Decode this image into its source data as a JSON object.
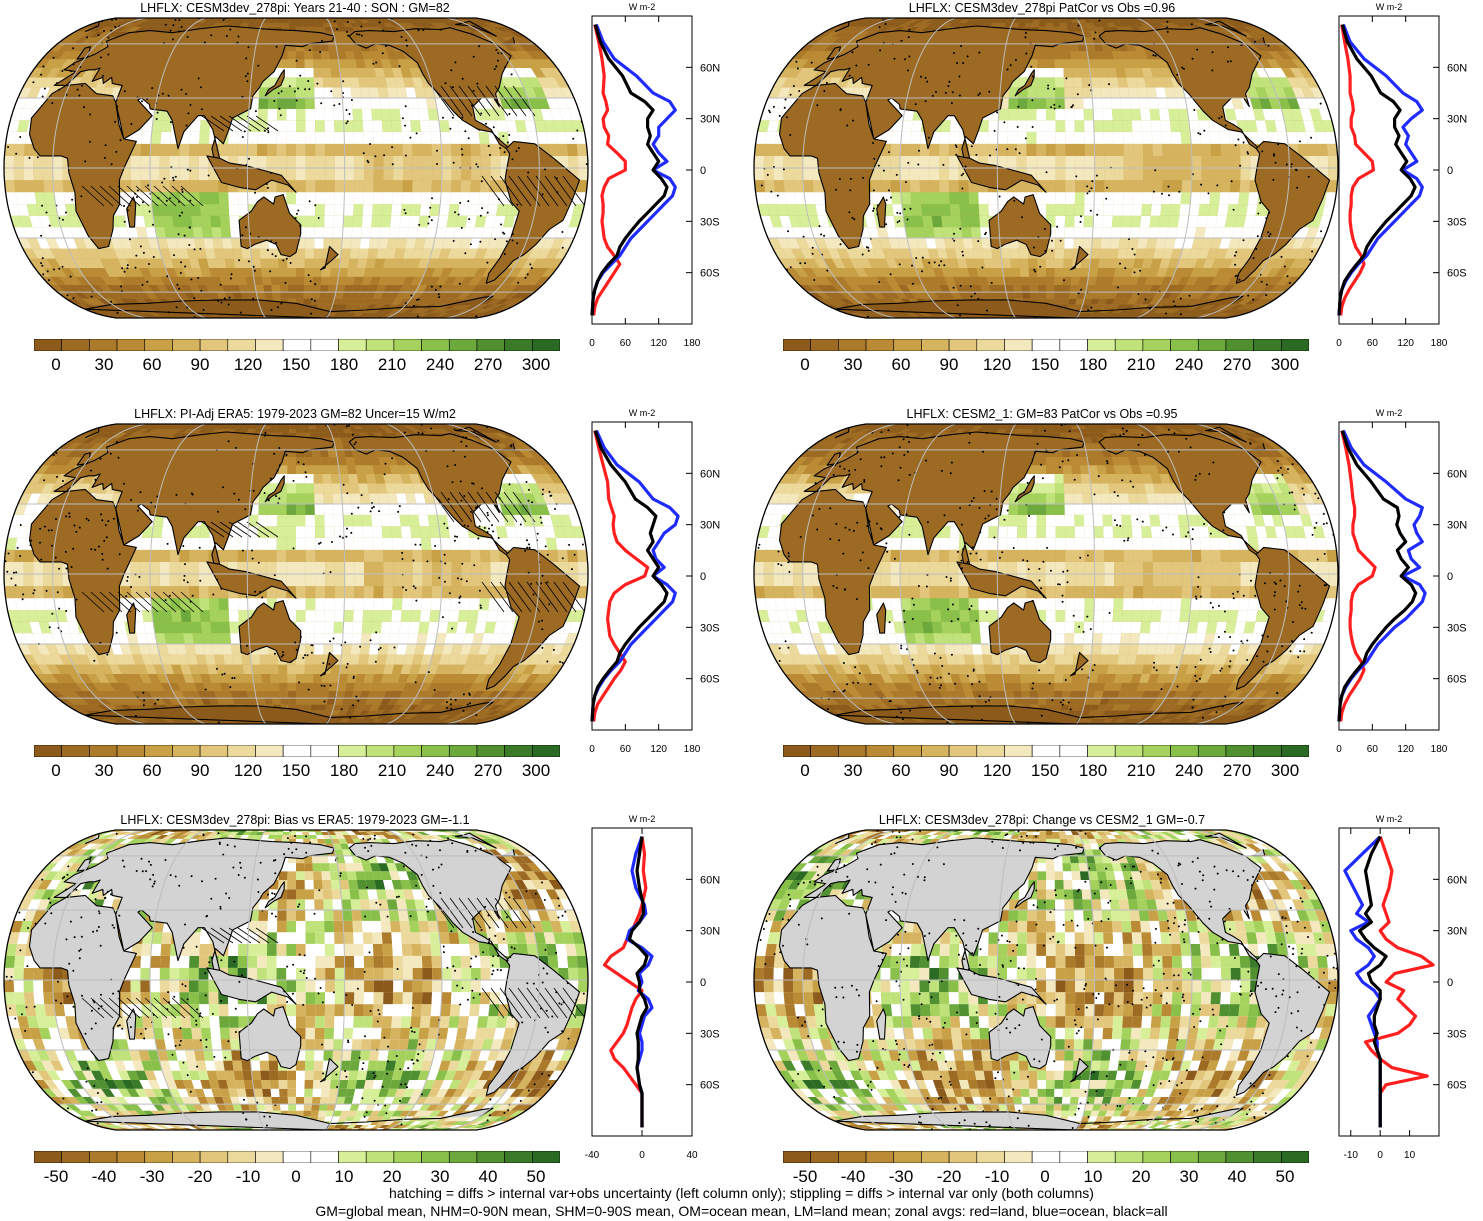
{
  "colors": {
    "land_gray": "#d3d3d3",
    "grid_line": "#bdbdbd",
    "zonal_land": "#ff1f1f",
    "zonal_ocean": "#1f2bff",
    "zonal_all": "#000000",
    "brown_to_green": [
      "#8c5a1b",
      "#9c6a22",
      "#ab7a2a",
      "#ba8a34",
      "#c8a046",
      "#d6b35f",
      "#e2c67c",
      "#ecd99c",
      "#f4e8bf",
      "#ffffff",
      "#ffffff",
      "#d8ef9a",
      "#bfe27a",
      "#a4d25d",
      "#88c04a",
      "#6ca83b",
      "#509030",
      "#3a7a28",
      "#2a6a22"
    ]
  },
  "footnote": {
    "line1": "hatching = diffs > internal var+obs uncertainty (left column only); stippling = diffs > internal var only (both columns)",
    "line2": "GM=global mean, NHM=0-90N mean, SHM=0-90S mean, OM=ocean mean, LM=land mean; zonal avgs: red=land, blue=ocean, black=all"
  },
  "chart_data": [
    {
      "type": "heatmap",
      "title": "LHFLX: CESM3dev_278pi: Years 21-40 : SON : GM=82",
      "colorbar_ticks": [
        "0",
        "30",
        "60",
        "90",
        "120",
        "150",
        "180",
        "210",
        "240",
        "270",
        "300"
      ],
      "zonal": {
        "xlabel": "W m-2",
        "xticks": [
          "0",
          "60",
          "120",
          "180"
        ],
        "xlim": [
          0,
          180
        ],
        "yticks": [
          "60N",
          "30N",
          "0",
          "30S",
          "60S"
        ],
        "lat": [
          85,
          75,
          65,
          55,
          45,
          40,
          35,
          30,
          25,
          20,
          15,
          10,
          5,
          0,
          -5,
          -10,
          -15,
          -20,
          -25,
          -30,
          -35,
          -40,
          -45,
          -50,
          -55,
          -60,
          -65,
          -70,
          -75,
          -80,
          -85
        ],
        "land": [
          5,
          12,
          18,
          22,
          20,
          25,
          28,
          20,
          22,
          30,
          28,
          45,
          60,
          60,
          30,
          22,
          18,
          20,
          20,
          18,
          20,
          22,
          28,
          40,
          50,
          40,
          30,
          20,
          10,
          5,
          3
        ],
        "ocean": [
          8,
          20,
          40,
          80,
          110,
          140,
          150,
          135,
          120,
          120,
          110,
          120,
          135,
          110,
          140,
          150,
          145,
          130,
          115,
          100,
          85,
          70,
          60,
          50,
          35,
          20,
          10,
          5,
          2,
          1,
          0
        ],
        "all": [
          6,
          15,
          30,
          55,
          70,
          95,
          110,
          100,
          100,
          105,
          100,
          110,
          120,
          110,
          125,
          135,
          130,
          115,
          100,
          85,
          72,
          60,
          50,
          45,
          30,
          18,
          10,
          5,
          2,
          1,
          0
        ]
      }
    },
    {
      "type": "heatmap",
      "title": "LHFLX: CESM3dev_278pi PatCor vs Obs =0.96",
      "colorbar_ticks": [
        "0",
        "30",
        "60",
        "90",
        "120",
        "150",
        "180",
        "210",
        "240",
        "270",
        "300"
      ],
      "zonal": {
        "xlabel": "W m-2",
        "xticks": [
          "0",
          "60",
          "120",
          "180"
        ],
        "xlim": [
          0,
          180
        ],
        "yticks": [
          "60N",
          "30N",
          "0",
          "30S",
          "60S"
        ],
        "lat": [
          85,
          75,
          65,
          55,
          45,
          40,
          35,
          30,
          25,
          20,
          15,
          10,
          5,
          0,
          -5,
          -10,
          -15,
          -20,
          -25,
          -30,
          -35,
          -40,
          -45,
          -50,
          -55,
          -60,
          -65,
          -70,
          -75,
          -80,
          -85
        ],
        "land": [
          5,
          10,
          16,
          20,
          20,
          24,
          26,
          22,
          22,
          28,
          30,
          45,
          60,
          62,
          35,
          25,
          22,
          22,
          20,
          20,
          22,
          25,
          30,
          40,
          45,
          38,
          28,
          18,
          10,
          5,
          3
        ],
        "ocean": [
          8,
          20,
          45,
          85,
          115,
          140,
          150,
          130,
          115,
          125,
          120,
          130,
          140,
          115,
          140,
          150,
          145,
          130,
          115,
          100,
          85,
          70,
          60,
          50,
          35,
          22,
          12,
          5,
          2,
          1,
          0
        ],
        "all": [
          6,
          15,
          32,
          58,
          75,
          98,
          110,
          100,
          100,
          108,
          102,
          112,
          122,
          112,
          128,
          137,
          130,
          115,
          100,
          85,
          72,
          60,
          50,
          45,
          32,
          20,
          10,
          5,
          2,
          1,
          0
        ]
      }
    },
    {
      "type": "heatmap",
      "title": "LHFLX: PI-Adj ERA5: 1979-2023 GM=82 Uncer=15 W/m2",
      "colorbar_ticks": [
        "0",
        "30",
        "60",
        "90",
        "120",
        "150",
        "180",
        "210",
        "240",
        "270",
        "300"
      ],
      "zonal": {
        "xlabel": "W m-2",
        "xticks": [
          "0",
          "60",
          "120",
          "180"
        ],
        "xlim": [
          0,
          180
        ],
        "yticks": [
          "60N",
          "30N",
          "0",
          "30S",
          "60S"
        ],
        "lat": [
          85,
          75,
          65,
          55,
          45,
          40,
          35,
          30,
          25,
          20,
          15,
          10,
          5,
          0,
          -5,
          -10,
          -15,
          -20,
          -25,
          -30,
          -35,
          -40,
          -45,
          -50,
          -55,
          -60,
          -65,
          -70,
          -75,
          -80,
          -85
        ],
        "land": [
          5,
          12,
          20,
          28,
          30,
          35,
          40,
          38,
          40,
          45,
          60,
          80,
          100,
          95,
          60,
          40,
          32,
          30,
          28,
          30,
          32,
          40,
          50,
          60,
          52,
          40,
          30,
          20,
          10,
          5,
          3
        ],
        "ocean": [
          8,
          22,
          45,
          85,
          110,
          140,
          155,
          150,
          130,
          120,
          110,
          115,
          130,
          110,
          135,
          150,
          145,
          130,
          115,
          100,
          85,
          70,
          60,
          50,
          35,
          22,
          12,
          5,
          2,
          1,
          0
        ],
        "all": [
          6,
          16,
          34,
          60,
          78,
          100,
          115,
          110,
          105,
          110,
          100,
          110,
          120,
          110,
          125,
          135,
          130,
          115,
          100,
          85,
          72,
          60,
          50,
          45,
          32,
          20,
          10,
          5,
          2,
          1,
          0
        ]
      }
    },
    {
      "type": "heatmap",
      "title": "LHFLX: CESM2_1: GM=83 PatCor vs Obs =0.95",
      "colorbar_ticks": [
        "0",
        "30",
        "60",
        "90",
        "120",
        "150",
        "180",
        "210",
        "240",
        "270",
        "300"
      ],
      "zonal": {
        "xlabel": "W m-2",
        "xticks": [
          "0",
          "60",
          "120",
          "180"
        ],
        "xlim": [
          0,
          180
        ],
        "yticks": [
          "60N",
          "30N",
          "0",
          "30S",
          "60S"
        ],
        "lat": [
          85,
          75,
          65,
          55,
          45,
          40,
          35,
          30,
          25,
          20,
          15,
          10,
          5,
          0,
          -5,
          -10,
          -15,
          -20,
          -25,
          -30,
          -35,
          -40,
          -45,
          -50,
          -55,
          -60,
          -65,
          -70,
          -75,
          -80,
          -85
        ],
        "land": [
          5,
          12,
          18,
          22,
          25,
          28,
          28,
          25,
          25,
          30,
          35,
          50,
          65,
          60,
          35,
          25,
          22,
          22,
          20,
          20,
          22,
          25,
          30,
          40,
          45,
          38,
          28,
          18,
          10,
          5,
          3
        ],
        "ocean": [
          8,
          22,
          45,
          85,
          120,
          150,
          145,
          135,
          140,
          150,
          125,
          130,
          145,
          115,
          145,
          155,
          150,
          135,
          120,
          100,
          85,
          70,
          60,
          50,
          35,
          22,
          12,
          5,
          2,
          1,
          0
        ],
        "all": [
          6,
          16,
          32,
          58,
          80,
          105,
          108,
          104,
          110,
          120,
          105,
          112,
          125,
          112,
          130,
          138,
          132,
          118,
          100,
          85,
          72,
          60,
          50,
          45,
          32,
          20,
          10,
          5,
          2,
          1,
          0
        ]
      }
    },
    {
      "type": "heatmap",
      "title": "LHFLX: CESM3dev_278pi: Bias vs ERA5: 1979-2023  GM=-1.1",
      "colorbar_ticks": [
        "-50",
        "-40",
        "-30",
        "-20",
        "-10",
        "0",
        "10",
        "20",
        "30",
        "40",
        "50"
      ],
      "zonal": {
        "xlabel": "W m-2",
        "xticks": [
          "-40",
          "0",
          "40"
        ],
        "xlim": [
          -40,
          40
        ],
        "yticks": [
          "60N",
          "30N",
          "0",
          "30S",
          "60S"
        ],
        "lat": [
          85,
          75,
          65,
          55,
          45,
          40,
          35,
          30,
          25,
          20,
          15,
          10,
          5,
          0,
          -5,
          -10,
          -15,
          -20,
          -25,
          -30,
          -35,
          -40,
          -45,
          -50,
          -55,
          -60,
          -65,
          -70,
          -75,
          -80,
          -85
        ],
        "land": [
          0,
          2,
          1,
          3,
          0,
          -2,
          -5,
          -8,
          -12,
          -15,
          -25,
          -30,
          -20,
          -10,
          0,
          -5,
          -8,
          -10,
          -12,
          -15,
          -20,
          -25,
          -22,
          -15,
          -10,
          -5,
          0,
          0,
          0,
          0,
          0
        ],
        "ocean": [
          0,
          -5,
          -8,
          -5,
          2,
          3,
          -2,
          -10,
          -12,
          0,
          8,
          5,
          -2,
          0,
          -3,
          5,
          8,
          2,
          0,
          -2,
          0,
          0,
          -2,
          -4,
          -3,
          -2,
          0,
          0,
          0,
          0,
          0
        ],
        "all": [
          0,
          -2,
          -4,
          -2,
          1,
          1,
          -2,
          -8,
          -10,
          -2,
          4,
          2,
          -4,
          -2,
          -2,
          2,
          4,
          0,
          -2,
          -4,
          -3,
          -3,
          -3,
          -4,
          -3,
          -2,
          0,
          0,
          0,
          0,
          0
        ]
      }
    },
    {
      "type": "heatmap",
      "title": "LHFLX: CESM3dev_278pi: Change vs CESM2_1 GM=-0.7",
      "colorbar_ticks": [
        "-50",
        "-40",
        "-30",
        "-20",
        "-10",
        "0",
        "10",
        "20",
        "30",
        "40",
        "50"
      ],
      "zonal": {
        "xlabel": "W m-2",
        "xticks": [
          "-10",
          "0",
          "10"
        ],
        "xlim": [
          -14,
          20
        ],
        "yticks": [
          "60N",
          "30N",
          "0",
          "30S",
          "60S"
        ],
        "lat": [
          85,
          75,
          65,
          55,
          45,
          40,
          35,
          30,
          25,
          20,
          15,
          10,
          5,
          0,
          -5,
          -10,
          -15,
          -20,
          -25,
          -30,
          -35,
          -40,
          -45,
          -50,
          -55,
          -60,
          -65,
          -70,
          -75,
          -80,
          -85
        ],
        "land": [
          0,
          2,
          4,
          3,
          1,
          2,
          3,
          0,
          2,
          6,
          14,
          18,
          5,
          2,
          8,
          6,
          9,
          12,
          10,
          6,
          -5,
          -3,
          0,
          4,
          16,
          2,
          0,
          0,
          0,
          0,
          0
        ],
        "ocean": [
          0,
          -6,
          -12,
          -9,
          -6,
          -8,
          -4,
          -10,
          -8,
          -4,
          -2,
          -4,
          -8,
          -6,
          -2,
          0,
          -2,
          -4,
          -3,
          -2,
          -1,
          -1,
          0,
          0,
          0,
          0,
          0,
          0,
          0,
          0,
          0
        ],
        "all": [
          0,
          -3,
          -5,
          -4,
          -3,
          -5,
          -3,
          -7,
          -5,
          -2,
          2,
          0,
          -4,
          -3,
          0,
          0,
          -1,
          -2,
          -2,
          -1,
          -2,
          -1,
          0,
          0,
          0,
          0,
          0,
          0,
          0,
          0,
          0
        ]
      }
    }
  ]
}
